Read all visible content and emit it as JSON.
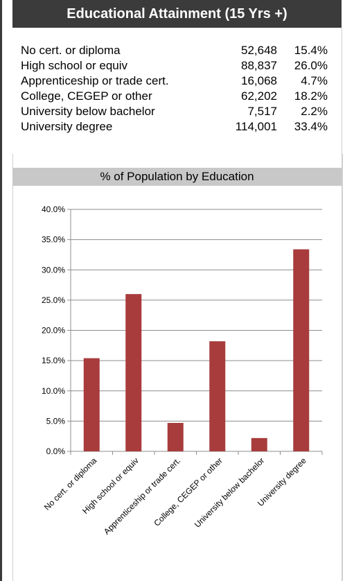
{
  "header": {
    "title": "Educational Attainment (15 Yrs +)"
  },
  "stats": [
    {
      "label": "No cert. or diploma",
      "count": "52,648",
      "percent": "15.4%"
    },
    {
      "label": "High school or equiv",
      "count": "88,837",
      "percent": "26.0%"
    },
    {
      "label": "Apprenticeship or trade cert.",
      "count": "16,068",
      "percent": "4.7%"
    },
    {
      "label": "College, CEGEP or other",
      "count": "62,202",
      "percent": "18.2%"
    },
    {
      "label": "University below bachelor",
      "count": "7,517",
      "percent": "2.2%"
    },
    {
      "label": "University degree",
      "count": "114,001",
      "percent": "33.4%"
    }
  ],
  "chart_data": {
    "type": "bar",
    "title": "% of Population by Education",
    "categories": [
      "No cert. or diploma",
      "High school or equiv",
      "Apprenticeship or trade cert.",
      "College, CEGEP or other",
      "University below bachelor",
      "University degree"
    ],
    "values": [
      15.4,
      26.0,
      4.7,
      18.2,
      2.2,
      33.4
    ],
    "ylim": [
      0,
      40
    ],
    "yticks": [
      "0.0%",
      "5.0%",
      "10.0%",
      "15.0%",
      "20.0%",
      "25.0%",
      "30.0%",
      "35.0%",
      "40.0%"
    ],
    "grid": true,
    "bar_color": "#a83c3c",
    "grid_color": "#8c8c8c"
  }
}
